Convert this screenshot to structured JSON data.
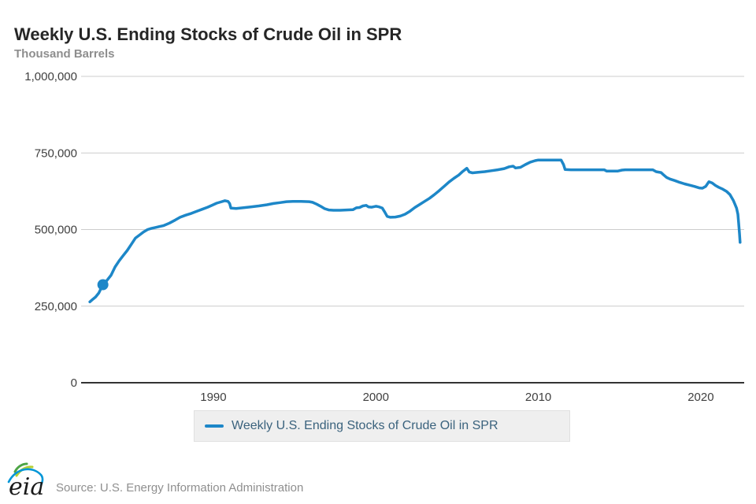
{
  "header": {
    "title": "Weekly U.S. Ending Stocks of Crude Oil in SPR",
    "units_label": "Thousand Barrels"
  },
  "legend": {
    "label": "Weekly U.S. Ending Stocks of Crude Oil in SPR"
  },
  "footer": {
    "logo_text": "eia",
    "source": "Source: U.S. Energy Information Administration"
  },
  "colors": {
    "line": "#1d87c8",
    "grid": "#cccccc",
    "axis": "#333333",
    "title": "#262626",
    "units": "#8e8e8e",
    "tick": "#3f3f3f",
    "legend_bg": "#efefef",
    "legend_border": "#e0e0e0",
    "legend_text": "#3a627d",
    "source": "#8f8f8f",
    "logo_green": "#4ea546",
    "logo_lime": "#b5cf35",
    "logo_blue": "#0096d7",
    "logo_text": "#191919"
  },
  "chart_data": {
    "type": "line",
    "title": "Weekly U.S. Ending Stocks of Crude Oil in SPR",
    "xlabel": "",
    "ylabel": "Thousand Barrels",
    "grid": true,
    "legend_position": "bottom",
    "ylim": [
      0,
      1000000
    ],
    "xlim": [
      1981.86,
      2022.67
    ],
    "y_ticks": [
      {
        "value": 0,
        "label": "0"
      },
      {
        "value": 250000,
        "label": "250,000"
      },
      {
        "value": 500000,
        "label": "500,000"
      },
      {
        "value": 750000,
        "label": "750,000"
      },
      {
        "value": 1000000,
        "label": "1,000,000"
      }
    ],
    "x_ticks": [
      {
        "value": 1990,
        "label": "1990"
      },
      {
        "value": 2000,
        "label": "2000"
      },
      {
        "value": 2010,
        "label": "2010"
      },
      {
        "value": 2020,
        "label": "2020"
      }
    ],
    "highlight_point": {
      "x": 1983.2,
      "y": 320000
    },
    "series": [
      {
        "name": "Weekly U.S. Ending Stocks of Crude Oil in SPR",
        "color": "#1d87c8",
        "points": [
          [
            1982.4,
            264000
          ],
          [
            1982.55,
            271000
          ],
          [
            1982.75,
            280000
          ],
          [
            1982.95,
            293000
          ],
          [
            1983.2,
            320000
          ],
          [
            1983.45,
            334000
          ],
          [
            1983.7,
            351000
          ],
          [
            1983.95,
            378000
          ],
          [
            1984.2,
            398000
          ],
          [
            1984.45,
            415000
          ],
          [
            1984.7,
            432000
          ],
          [
            1984.95,
            452000
          ],
          [
            1985.2,
            472000
          ],
          [
            1985.45,
            482000
          ],
          [
            1985.7,
            492000
          ],
          [
            1985.95,
            500000
          ],
          [
            1986.2,
            504000
          ],
          [
            1986.45,
            507000
          ],
          [
            1986.7,
            510000
          ],
          [
            1986.95,
            513000
          ],
          [
            1987.3,
            521000
          ],
          [
            1987.65,
            531000
          ],
          [
            1987.95,
            540000
          ],
          [
            1988.3,
            547000
          ],
          [
            1988.65,
            553000
          ],
          [
            1988.95,
            559000
          ],
          [
            1989.3,
            566000
          ],
          [
            1989.65,
            573000
          ],
          [
            1989.95,
            580000
          ],
          [
            1990.2,
            586000
          ],
          [
            1990.45,
            590000
          ],
          [
            1990.7,
            594000
          ],
          [
            1990.9,
            592000
          ],
          [
            1991.0,
            585000
          ],
          [
            1991.08,
            570000
          ],
          [
            1991.4,
            569000
          ],
          [
            1991.8,
            571000
          ],
          [
            1992.3,
            574000
          ],
          [
            1992.8,
            577000
          ],
          [
            1993.3,
            581000
          ],
          [
            1993.7,
            585000
          ],
          [
            1994.1,
            588000
          ],
          [
            1994.5,
            591000
          ],
          [
            1994.9,
            592000
          ],
          [
            1995.4,
            592000
          ],
          [
            1995.9,
            591000
          ],
          [
            1996.1,
            589000
          ],
          [
            1996.35,
            583000
          ],
          [
            1996.6,
            576000
          ],
          [
            1996.85,
            568000
          ],
          [
            1997.1,
            564000
          ],
          [
            1997.4,
            563000
          ],
          [
            1997.8,
            563000
          ],
          [
            1998.2,
            564000
          ],
          [
            1998.6,
            565000
          ],
          [
            1998.8,
            571000
          ],
          [
            1999.0,
            572000
          ],
          [
            1999.2,
            577000
          ],
          [
            1999.4,
            579000
          ],
          [
            1999.55,
            574000
          ],
          [
            1999.75,
            573000
          ],
          [
            2000.0,
            576000
          ],
          [
            2000.2,
            574000
          ],
          [
            2000.4,
            570000
          ],
          [
            2000.55,
            557000
          ],
          [
            2000.7,
            543000
          ],
          [
            2000.9,
            540000
          ],
          [
            2001.2,
            541000
          ],
          [
            2001.5,
            544000
          ],
          [
            2001.8,
            550000
          ],
          [
            2002.1,
            560000
          ],
          [
            2002.4,
            572000
          ],
          [
            2002.7,
            582000
          ],
          [
            2003.0,
            592000
          ],
          [
            2003.3,
            602000
          ],
          [
            2003.6,
            614000
          ],
          [
            2003.9,
            627000
          ],
          [
            2004.2,
            641000
          ],
          [
            2004.5,
            655000
          ],
          [
            2004.8,
            667000
          ],
          [
            2005.1,
            678000
          ],
          [
            2005.35,
            690000
          ],
          [
            2005.6,
            700000
          ],
          [
            2005.75,
            688000
          ],
          [
            2005.95,
            685000
          ],
          [
            2006.3,
            687000
          ],
          [
            2006.7,
            689000
          ],
          [
            2007.1,
            692000
          ],
          [
            2007.5,
            695000
          ],
          [
            2007.9,
            699000
          ],
          [
            2008.2,
            705000
          ],
          [
            2008.45,
            707000
          ],
          [
            2008.6,
            701000
          ],
          [
            2008.9,
            703000
          ],
          [
            2009.2,
            712000
          ],
          [
            2009.5,
            720000
          ],
          [
            2009.8,
            725000
          ],
          [
            2010.0,
            727000
          ],
          [
            2011.4,
            727000
          ],
          [
            2011.55,
            712000
          ],
          [
            2011.65,
            696000
          ],
          [
            2012.0,
            695000
          ],
          [
            2013.0,
            695000
          ],
          [
            2014.05,
            695000
          ],
          [
            2014.2,
            691000
          ],
          [
            2014.9,
            691000
          ],
          [
            2015.15,
            694000
          ],
          [
            2015.35,
            695000
          ],
          [
            2016.5,
            695000
          ],
          [
            2017.05,
            695000
          ],
          [
            2017.25,
            689000
          ],
          [
            2017.55,
            686000
          ],
          [
            2017.7,
            679000
          ],
          [
            2017.9,
            670000
          ],
          [
            2018.1,
            665000
          ],
          [
            2018.4,
            660000
          ],
          [
            2018.7,
            654000
          ],
          [
            2019.0,
            649000
          ],
          [
            2019.3,
            645000
          ],
          [
            2019.6,
            641000
          ],
          [
            2019.9,
            636000
          ],
          [
            2020.1,
            635000
          ],
          [
            2020.3,
            641000
          ],
          [
            2020.5,
            656000
          ],
          [
            2020.7,
            652000
          ],
          [
            2020.9,
            644000
          ],
          [
            2021.1,
            638000
          ],
          [
            2021.35,
            632000
          ],
          [
            2021.6,
            624000
          ],
          [
            2021.8,
            614000
          ],
          [
            2022.0,
            595000
          ],
          [
            2022.1,
            583000
          ],
          [
            2022.2,
            570000
          ],
          [
            2022.28,
            550000
          ],
          [
            2022.33,
            520000
          ],
          [
            2022.38,
            488000
          ],
          [
            2022.42,
            458000
          ]
        ]
      }
    ]
  }
}
